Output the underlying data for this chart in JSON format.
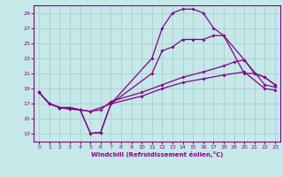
{
  "xlabel": "Windchill (Refroidissement éolien,°C)",
  "xlim": [
    -0.5,
    23.5
  ],
  "ylim": [
    12,
    30
  ],
  "yticks": [
    13,
    15,
    17,
    19,
    21,
    23,
    25,
    27,
    29
  ],
  "xticks": [
    0,
    1,
    2,
    3,
    4,
    5,
    6,
    7,
    8,
    9,
    10,
    11,
    12,
    13,
    14,
    15,
    16,
    17,
    18,
    19,
    20,
    21,
    22,
    23
  ],
  "bg_color": "#c5e8e8",
  "grid_color": "#aad0d0",
  "line_color": "#880088",
  "lines": [
    {
      "x": [
        0,
        1,
        2,
        3,
        4,
        5,
        6,
        7,
        11,
        12,
        13,
        14,
        15,
        16,
        17,
        18,
        20,
        21,
        22,
        23
      ],
      "y": [
        18.5,
        17.0,
        16.5,
        16.3,
        16.2,
        13.1,
        13.2,
        17.0,
        23.0,
        27.0,
        29.0,
        29.5,
        29.5,
        29.0,
        27.0,
        26.0,
        21.0,
        21.0,
        20.5,
        19.5
      ]
    },
    {
      "x": [
        0,
        1,
        2,
        3,
        4,
        5,
        6,
        7,
        11,
        12,
        13,
        14,
        15,
        16,
        17,
        18,
        20,
        21,
        22,
        23
      ],
      "y": [
        18.5,
        17.0,
        16.5,
        16.3,
        16.2,
        13.1,
        13.2,
        17.0,
        21.0,
        24.0,
        24.5,
        25.5,
        25.5,
        25.5,
        26.0,
        26.0,
        22.8,
        21.0,
        20.5,
        19.5
      ]
    },
    {
      "x": [
        0,
        1,
        2,
        3,
        4,
        5,
        6,
        7,
        10,
        12,
        14,
        16,
        18,
        19,
        20,
        22,
        23
      ],
      "y": [
        18.5,
        17.0,
        16.5,
        16.5,
        16.2,
        16.0,
        16.2,
        17.3,
        18.5,
        19.5,
        20.5,
        21.2,
        22.0,
        22.5,
        22.8,
        19.5,
        19.2
      ]
    },
    {
      "x": [
        0,
        1,
        2,
        3,
        4,
        5,
        7,
        10,
        12,
        14,
        16,
        18,
        20,
        22,
        23
      ],
      "y": [
        18.5,
        17.0,
        16.5,
        16.5,
        16.2,
        16.0,
        17.0,
        18.0,
        19.0,
        19.8,
        20.3,
        20.8,
        21.2,
        19.0,
        18.8
      ]
    }
  ]
}
